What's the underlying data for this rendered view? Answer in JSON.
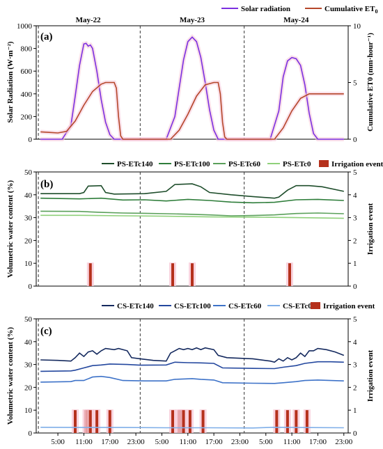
{
  "chart_data": [
    {
      "panel": "(a)",
      "type": "line",
      "legend": [
        {
          "label": "Solar radiation",
          "color": "#7b2fe0"
        },
        {
          "label": "Cumulative ET0",
          "color": "#b5472a"
        }
      ],
      "day_labels": [
        "May-22",
        "May-23",
        "May-24"
      ],
      "ylabel_left": "Solar Radiation (W·m⁻²)",
      "ylabel_right": "Cumulative ET0 (mm·hour⁻¹)",
      "yticks_left": [
        "0",
        "200",
        "400",
        "600",
        "800",
        "1000"
      ],
      "yticks_right": [
        "0",
        "5",
        "10"
      ],
      "ylim_left": [
        0,
        1000
      ],
      "ylim_right": [
        0,
        10
      ],
      "series": [
        {
          "name": "Solar radiation",
          "axis": "left",
          "color": "#7b2fe0",
          "points": [
            [
              1,
              0
            ],
            [
              6,
              0
            ],
            [
              8,
              120
            ],
            [
              9,
              380
            ],
            [
              10,
              650
            ],
            [
              11,
              840
            ],
            [
              11.5,
              845
            ],
            [
              12,
              820
            ],
            [
              12.5,
              830
            ],
            [
              13,
              800
            ],
            [
              14,
              600
            ],
            [
              15,
              350
            ],
            [
              16,
              150
            ],
            [
              17,
              40
            ],
            [
              18,
              0
            ],
            [
              30,
              0
            ],
            [
              32,
              200
            ],
            [
              33,
              450
            ],
            [
              34,
              700
            ],
            [
              35,
              860
            ],
            [
              36,
              900
            ],
            [
              37,
              860
            ],
            [
              38,
              720
            ],
            [
              39,
              500
            ],
            [
              40,
              260
            ],
            [
              41,
              80
            ],
            [
              42,
              0
            ],
            [
              54,
              0
            ],
            [
              56,
              250
            ],
            [
              57,
              550
            ],
            [
              58,
              690
            ],
            [
              59,
              720
            ],
            [
              60,
              710
            ],
            [
              61,
              650
            ],
            [
              62,
              480
            ],
            [
              63,
              230
            ],
            [
              64,
              50
            ],
            [
              65,
              0
            ],
            [
              71,
              0
            ]
          ]
        },
        {
          "name": "Cumulative ET0",
          "axis": "right",
          "color": "#b5472a",
          "points": [
            [
              1,
              0.65
            ],
            [
              3,
              0.6
            ],
            [
              5,
              0.55
            ],
            [
              7,
              0.7
            ],
            [
              9,
              1.6
            ],
            [
              11,
              3.0
            ],
            [
              13,
              4.2
            ],
            [
              15,
              4.85
            ],
            [
              16,
              5.0
            ],
            [
              18,
              5.0
            ],
            [
              18.5,
              4.5
            ],
            [
              19,
              2.0
            ],
            [
              19.5,
              0.3
            ],
            [
              20,
              0
            ],
            [
              31,
              0
            ],
            [
              33,
              0.8
            ],
            [
              35,
              2.2
            ],
            [
              37,
              3.8
            ],
            [
              39,
              4.8
            ],
            [
              41,
              5.0
            ],
            [
              42,
              5.0
            ],
            [
              42.5,
              4.0
            ],
            [
              43,
              1.5
            ],
            [
              43.5,
              0.2
            ],
            [
              44,
              0
            ],
            [
              55,
              0
            ],
            [
              57,
              1.0
            ],
            [
              59,
              2.5
            ],
            [
              61,
              3.6
            ],
            [
              63,
              4.0
            ],
            [
              71,
              4.0
            ]
          ]
        }
      ]
    },
    {
      "panel": "(b)",
      "type": "line",
      "legend": [
        {
          "label": "PS-ETc140",
          "color": "#1e4d2b"
        },
        {
          "label": "PS-ETc100",
          "color": "#2e7d3a"
        },
        {
          "label": "PS-ETc60",
          "color": "#5aa05a"
        },
        {
          "label": "PS-ETc0",
          "color": "#8fd07a"
        },
        {
          "label": "Irrigation event",
          "color": "#b5311c"
        }
      ],
      "ylabel_left": "Volumetric water content (%)",
      "ylabel_right": "Irrigation event",
      "yticks_left": [
        "0",
        "10",
        "20",
        "30",
        "40",
        "50"
      ],
      "yticks_right": [
        "0",
        "1",
        "2",
        "3",
        "4",
        "5"
      ],
      "ylim_left": [
        0,
        50
      ],
      "ylim_right": [
        0,
        5
      ],
      "series": [
        {
          "name": "PS-ETc140",
          "color": "#1e4d2b",
          "points": [
            [
              1,
              40.5
            ],
            [
              10,
              40.5
            ],
            [
              11,
              41
            ],
            [
              12,
              43.8
            ],
            [
              15,
              44
            ],
            [
              16,
              41
            ],
            [
              18,
              40.3
            ],
            [
              25,
              40.5
            ],
            [
              30,
              41.5
            ],
            [
              31,
              43
            ],
            [
              32,
              44.5
            ],
            [
              36,
              44.8
            ],
            [
              38,
              43.5
            ],
            [
              40,
              41
            ],
            [
              45,
              40
            ],
            [
              50,
              39.2
            ],
            [
              55,
              38.5
            ],
            [
              56,
              39
            ],
            [
              58,
              42
            ],
            [
              60,
              44
            ],
            [
              63,
              44
            ],
            [
              66,
              43.5
            ],
            [
              71,
              41.5
            ]
          ]
        },
        {
          "name": "PS-ETc100",
          "color": "#2e7d3a",
          "points": [
            [
              1,
              38.5
            ],
            [
              10,
              38.2
            ],
            [
              15,
              38.5
            ],
            [
              20,
              37.7
            ],
            [
              25,
              37.8
            ],
            [
              30,
              37.3
            ],
            [
              35,
              38
            ],
            [
              40,
              37.5
            ],
            [
              45,
              36.8
            ],
            [
              50,
              36.5
            ],
            [
              55,
              36.7
            ],
            [
              60,
              37.8
            ],
            [
              65,
              38
            ],
            [
              71,
              37.5
            ]
          ]
        },
        {
          "name": "PS-ETc60",
          "color": "#5aa05a",
          "points": [
            [
              1,
              32.8
            ],
            [
              10,
              32.7
            ],
            [
              15,
              32.3
            ],
            [
              20,
              32
            ],
            [
              25,
              31.9
            ],
            [
              30,
              31.7
            ],
            [
              35,
              31.5
            ],
            [
              40,
              31.2
            ],
            [
              45,
              30.8
            ],
            [
              50,
              30.9
            ],
            [
              55,
              31.2
            ],
            [
              60,
              31.8
            ],
            [
              65,
              32
            ],
            [
              71,
              31.7
            ]
          ]
        },
        {
          "name": "PS-ETc0",
          "color": "#8fd07a",
          "points": [
            [
              1,
              31
            ],
            [
              10,
              31
            ],
            [
              20,
              30.8
            ],
            [
              30,
              30.6
            ],
            [
              40,
              30.3
            ],
            [
              50,
              30.2
            ],
            [
              60,
              30
            ],
            [
              71,
              29.7
            ]
          ]
        }
      ],
      "irrigation": [
        12.5,
        31.5,
        36,
        58.5
      ]
    },
    {
      "panel": "(c)",
      "type": "line",
      "legend": [
        {
          "label": "CS-ETc140",
          "color": "#14295e"
        },
        {
          "label": "CS-ETc100",
          "color": "#23479e"
        },
        {
          "label": "CS-ETc60",
          "color": "#3d72c8"
        },
        {
          "label": "CS-ETc0",
          "color": "#7eaee8"
        },
        {
          "label": "Irrigation event",
          "color": "#b5311c"
        }
      ],
      "ylabel_left": "Volumetric water content (%)",
      "ylabel_right": "Irrigation event",
      "yticks_left": [
        "0",
        "10",
        "20",
        "30",
        "40",
        "50"
      ],
      "yticks_right": [
        "0",
        "1",
        "2",
        "3",
        "4",
        "5"
      ],
      "ylim_left": [
        0,
        50
      ],
      "ylim_right": [
        0,
        5
      ],
      "xticks": [
        "5:00",
        "11:00",
        "17:00",
        "23:00",
        "5:00",
        "11:00",
        "17:00",
        "23:00",
        "5:00",
        "11:00",
        "17:00",
        "23:00"
      ],
      "series": [
        {
          "name": "CS-ETc140",
          "color": "#14295e",
          "points": [
            [
              1,
              32
            ],
            [
              5,
              31.8
            ],
            [
              8,
              31.5
            ],
            [
              9,
              33
            ],
            [
              10,
              35
            ],
            [
              11,
              33.5
            ],
            [
              12,
              35.5
            ],
            [
              13,
              36
            ],
            [
              14,
              34.5
            ],
            [
              15,
              36
            ],
            [
              16,
              37
            ],
            [
              18,
              36.5
            ],
            [
              19,
              37
            ],
            [
              21,
              36
            ],
            [
              22,
              33
            ],
            [
              24,
              32.5
            ],
            [
              27,
              31.8
            ],
            [
              30,
              31.5
            ],
            [
              31,
              35
            ],
            [
              32,
              36
            ],
            [
              33,
              37
            ],
            [
              34,
              36.5
            ],
            [
              35,
              37
            ],
            [
              36,
              36.5
            ],
            [
              37,
              37.3
            ],
            [
              38,
              36.5
            ],
            [
              39,
              37.3
            ],
            [
              41,
              36.5
            ],
            [
              42,
              34
            ],
            [
              44,
              33
            ],
            [
              50,
              32.5
            ],
            [
              54,
              31.5
            ],
            [
              55,
              31
            ],
            [
              56,
              32.5
            ],
            [
              57,
              31.5
            ],
            [
              58,
              33
            ],
            [
              59,
              32
            ],
            [
              60,
              33
            ],
            [
              61,
              35
            ],
            [
              62,
              33.5
            ],
            [
              63,
              36
            ],
            [
              64,
              36
            ],
            [
              65,
              37
            ],
            [
              67,
              36.5
            ],
            [
              69,
              35.5
            ],
            [
              71,
              34
            ]
          ]
        },
        {
          "name": "CS-ETc100",
          "color": "#23479e",
          "points": [
            [
              1,
              27
            ],
            [
              8,
              27.2
            ],
            [
              9,
              27.5
            ],
            [
              11,
              28.5
            ],
            [
              13,
              29.5
            ],
            [
              15,
              29.8
            ],
            [
              17,
              30.2
            ],
            [
              21,
              30
            ],
            [
              24,
              29.7
            ],
            [
              30,
              29.8
            ],
            [
              32,
              31
            ],
            [
              35,
              30.8
            ],
            [
              38,
              30.7
            ],
            [
              41,
              30.5
            ],
            [
              43,
              28.5
            ],
            [
              50,
              28.3
            ],
            [
              55,
              28.2
            ],
            [
              57,
              28.8
            ],
            [
              60,
              29.5
            ],
            [
              62,
              30.5
            ],
            [
              65,
              31.2
            ],
            [
              68,
              31.2
            ],
            [
              71,
              31
            ]
          ]
        },
        {
          "name": "CS-ETc60",
          "color": "#3d72c8",
          "points": [
            [
              1,
              22.3
            ],
            [
              8,
              22.5
            ],
            [
              9,
              23
            ],
            [
              11,
              23
            ],
            [
              13,
              24.5
            ],
            [
              15,
              24.8
            ],
            [
              17,
              24.3
            ],
            [
              20,
              23
            ],
            [
              25,
              22.8
            ],
            [
              30,
              22.8
            ],
            [
              32,
              23.5
            ],
            [
              36,
              23.8
            ],
            [
              38,
              23.5
            ],
            [
              41,
              23.2
            ],
            [
              43,
              22
            ],
            [
              50,
              21.8
            ],
            [
              55,
              21.7
            ],
            [
              57,
              22
            ],
            [
              60,
              22.5
            ],
            [
              62,
              23
            ],
            [
              65,
              23.2
            ],
            [
              68,
              23
            ],
            [
              71,
              22.8
            ]
          ]
        },
        {
          "name": "CS-ETc0",
          "color": "#7eaee8",
          "points": [
            [
              1,
              2.5
            ],
            [
              10,
              2.4
            ],
            [
              20,
              2.4
            ],
            [
              30,
              2.3
            ],
            [
              40,
              2.3
            ],
            [
              50,
              2.2
            ],
            [
              55,
              2.5
            ],
            [
              60,
              2.4
            ],
            [
              71,
              2.3
            ]
          ]
        }
      ],
      "irrigation": [
        9,
        11.5,
        12,
        12.5,
        14,
        17,
        31.5,
        33,
        33.5,
        34,
        35.5,
        38.5,
        55.5,
        58,
        60,
        62.5
      ]
    }
  ],
  "page_symbols": {
    "superscript_minus2": "-2",
    "subscript_0": "0"
  }
}
